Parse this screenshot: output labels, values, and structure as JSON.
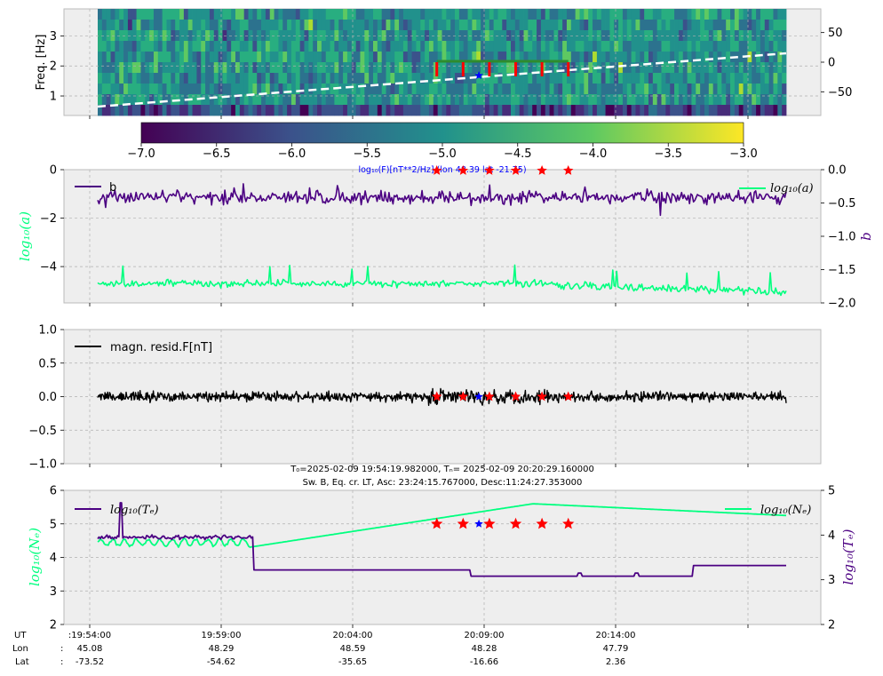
{
  "chart_data": [
    {
      "type": "heatmap",
      "ylabel": "Freq. [Hz]",
      "ylim": [
        0.35,
        3.9
      ],
      "yticks": [
        "1",
        "2",
        "3"
      ],
      "y2ticks": [
        "50",
        "0",
        "−50"
      ],
      "y2lim": [
        -90,
        90
      ],
      "colorbar": {
        "min": -7.0,
        "max": -3.0,
        "ticks": [
          "−7.0",
          "−6.5",
          "−6.0",
          "−5.5",
          "−5.0",
          "−4.5",
          "−4.0",
          "−3.5",
          "−3.0"
        ],
        "label": "log₁₀(F)[nT**2/Hz] (lon 48.39 lat -21.75)",
        "colors": [
          "#440154",
          "#3b528b",
          "#21918c",
          "#5ec962",
          "#fde725"
        ]
      },
      "latitude_line": {
        "from": -75,
        "to": 15,
        "color": "#ffffff",
        "style": "dashed"
      }
    },
    {
      "type": "line",
      "ylabel": "log₁₀(a)",
      "y2label": "b",
      "ylim": [
        0,
        -5.5
      ],
      "yticks": [
        "0",
        "−2",
        "−4"
      ],
      "y2ticks": [
        "0.0",
        "−0.5",
        "−1.0",
        "−1.5",
        "−2.0"
      ],
      "series": [
        {
          "name": "b",
          "color": "#4b0082",
          "mean_left_units": -1.15
        },
        {
          "name": "log₁₀(a)",
          "color": "#00ff7f",
          "mean_left_units": -4.7
        }
      ]
    },
    {
      "type": "line",
      "ylim": [
        -1.0,
        1.0
      ],
      "yticks": [
        "1.0",
        "0.5",
        "0.0",
        "−0.5",
        "−1.0"
      ],
      "series": [
        {
          "name": "magn. resid.F[nT]",
          "color": "#000000",
          "amplitude": 0.06
        }
      ]
    },
    {
      "type": "line",
      "title_line1": "T₀=2025-02-09 19:54:19.982000, Tₙ= 2025-02-09 20:20:29.160000",
      "title_line2": "Sw. B, Eq. cr. LT, Asc: 23:24:15.767000, Desc:11:24:27.353000",
      "ylabel": "log₁₀(Nₑ)",
      "y2label": "log₁₀(Tₑ)",
      "ylim": [
        2,
        6
      ],
      "yticks": [
        "6",
        "5",
        "4",
        "3",
        "2"
      ],
      "y2lim": [
        2,
        5
      ],
      "y2ticks": [
        "5",
        "4",
        "3",
        "2"
      ],
      "series": [
        {
          "name": "log₁₀(Tₑ)",
          "color": "#4b0082"
        },
        {
          "name": "log₁₀(Nₑ)",
          "color": "#00ff7f"
        }
      ]
    }
  ],
  "x_axis": {
    "row_labels": [
      "UT",
      "Lon",
      "Lat"
    ],
    "ticks": [
      {
        "ut": "19:54:00",
        "lon": "45.08",
        "lat": "-73.52"
      },
      {
        "ut": "19:59:00",
        "lon": "48.29",
        "lat": "-54.62"
      },
      {
        "ut": "20:04:00",
        "lon": "48.59",
        "lat": "-35.65"
      },
      {
        "ut": "20:09:00",
        "lon": "48.28",
        "lat": "-16.66"
      },
      {
        "ut": "20:14:00",
        "lon": "47.79",
        "lat": "2.36"
      }
    ]
  },
  "events": {
    "red_star_minutes": [
      13.2,
      14.2,
      15.2,
      16.2,
      17.2,
      18.2
    ],
    "blue_star_minute": 14.8
  }
}
